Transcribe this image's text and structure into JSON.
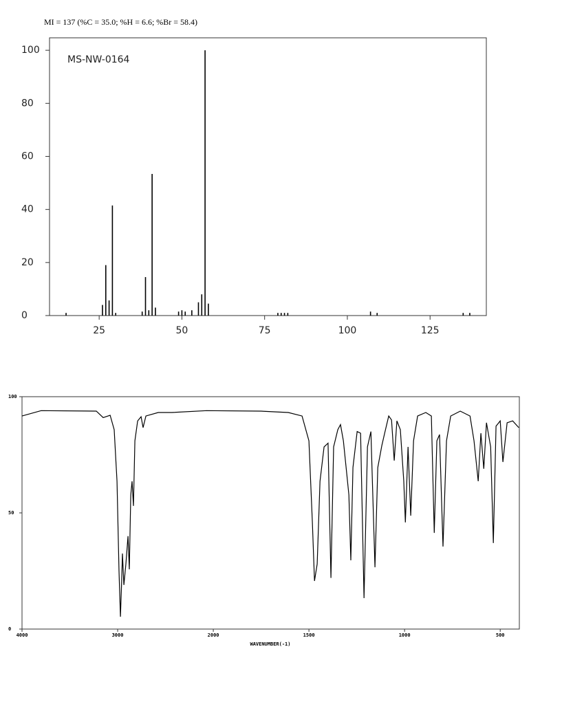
{
  "chart_data": [
    {
      "type": "bar",
      "title": "MI = 137 (%C = 35.0; %H = 6.6; %Br = 58.4)",
      "annotation": "MS-NW-0164",
      "x": [
        15,
        26,
        27,
        28,
        29,
        30,
        38,
        39,
        40,
        41,
        42,
        49,
        50,
        51,
        53,
        55,
        56,
        57,
        58,
        79,
        80,
        81,
        82,
        107,
        109,
        135,
        137
      ],
      "values": [
        1,
        4,
        19,
        5.7,
        41.5,
        1,
        1.5,
        14.5,
        2,
        53.4,
        3,
        1.5,
        2,
        1.5,
        2,
        5,
        8,
        100,
        4.5,
        1,
        1,
        1,
        1,
        1.5,
        1,
        1,
        1
      ],
      "color": "#000000",
      "xlim": [
        10,
        142
      ],
      "ylim": [
        0,
        104.7
      ],
      "xticks": [
        25,
        50,
        75,
        100,
        125
      ],
      "yticks": [
        0,
        20,
        40,
        60,
        80,
        100
      ]
    },
    {
      "type": "line",
      "x_label": "WAVENUMBER(-1)",
      "x": [
        4000,
        3800,
        3223,
        3151,
        3079,
        3036,
        3007,
        2986,
        2971,
        2957,
        2950,
        2935,
        2914,
        2892,
        2878,
        2863,
        2849,
        2835,
        2820,
        2791,
        2755,
        2734,
        2705,
        2576,
        2432,
        2072,
        1752,
        1608,
        1536,
        1500,
        1482,
        1471,
        1457,
        1442,
        1421,
        1400,
        1385,
        1371,
        1349,
        1335,
        1320,
        1302,
        1291,
        1281,
        1270,
        1248,
        1230,
        1212,
        1194,
        1176,
        1155,
        1140,
        1119,
        1104,
        1083,
        1068,
        1054,
        1040,
        1022,
        1004,
        996,
        982,
        968,
        953,
        932,
        889,
        860,
        845,
        831,
        817,
        799,
        781,
        759,
        709,
        658,
        637,
        615,
        601,
        586,
        572,
        550,
        536,
        522,
        500,
        486,
        464,
        435,
        403
      ],
      "values": [
        91.7,
        94,
        93.8,
        91,
        92,
        85.8,
        63.6,
        25,
        5.3,
        22,
        32.5,
        19,
        28,
        40,
        25.7,
        57.7,
        63.6,
        53,
        81,
        89.6,
        91.4,
        86.7,
        91.7,
        93.2,
        93.2,
        94,
        93.8,
        93.2,
        91.7,
        81,
        46,
        20.7,
        28,
        63.6,
        78.4,
        80,
        22,
        78.4,
        85.8,
        88,
        81,
        66.5,
        57.7,
        29.6,
        69.5,
        85,
        84.3,
        13.3,
        78.4,
        85,
        26.6,
        69.5,
        79,
        84.3,
        91.7,
        90,
        72.5,
        89.6,
        85.8,
        63.6,
        45.9,
        78.4,
        48.8,
        81,
        91.7,
        93.2,
        91.7,
        41.4,
        81,
        83.7,
        35.5,
        81,
        91.7,
        93.8,
        91.7,
        81,
        63.6,
        84.3,
        69,
        88.8,
        78.4,
        37,
        87.3,
        89.6,
        71.9,
        88.8,
        89.6,
        86.7
      ],
      "color": "#000000",
      "xlim": [
        4000,
        400
      ],
      "x_break": 2000,
      "ylim": [
        0,
        100
      ],
      "xticks": [
        4000,
        3000,
        2000,
        1500,
        1000,
        500
      ],
      "yticks": [
        0,
        50,
        100
      ]
    }
  ]
}
